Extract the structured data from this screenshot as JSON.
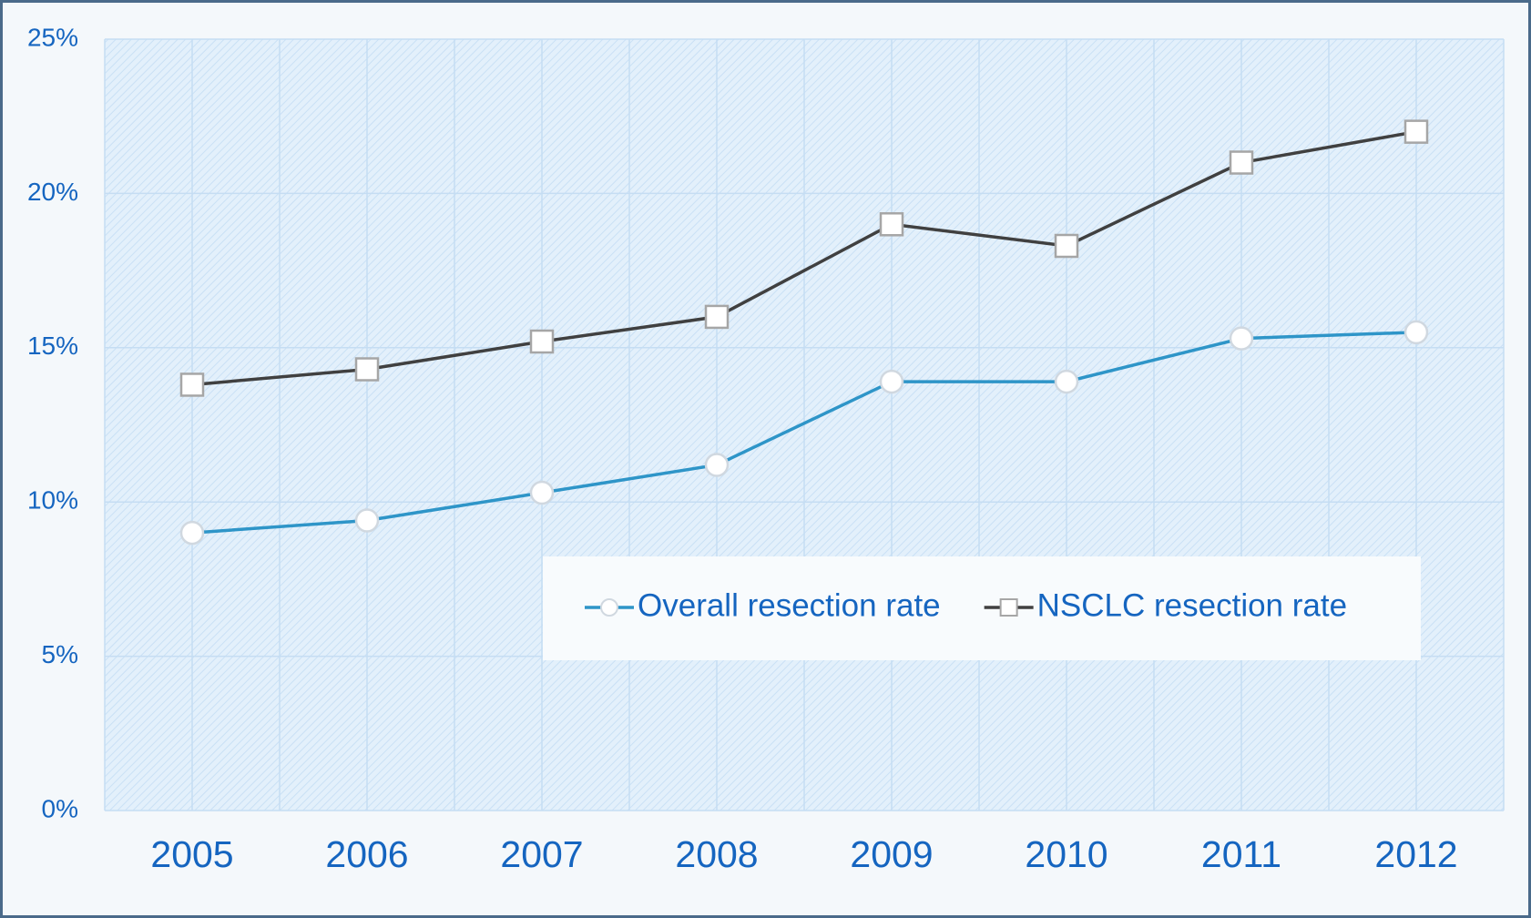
{
  "chart_data": {
    "type": "line",
    "categories": [
      "2005",
      "2006",
      "2007",
      "2008",
      "2009",
      "2010",
      "2011",
      "2012"
    ],
    "series": [
      {
        "name": "Overall resection rate",
        "color": "#2e95c8",
        "marker": "circle",
        "values": [
          9.0,
          9.4,
          10.3,
          11.2,
          13.9,
          13.9,
          15.3,
          15.5
        ]
      },
      {
        "name": "NSCLC resection rate",
        "color": "#404040",
        "marker": "square",
        "values": [
          13.8,
          14.3,
          15.2,
          16.0,
          19.0,
          18.3,
          21.0,
          22.0
        ]
      }
    ],
    "ylim": [
      0,
      25
    ],
    "yticks": [
      {
        "value": 0,
        "label": "0%"
      },
      {
        "value": 5,
        "label": "5%"
      },
      {
        "value": 10,
        "label": "10%"
      },
      {
        "value": 15,
        "label": "15%"
      },
      {
        "value": 20,
        "label": "20%"
      },
      {
        "value": 25,
        "label": "25%"
      }
    ],
    "grid": true
  }
}
